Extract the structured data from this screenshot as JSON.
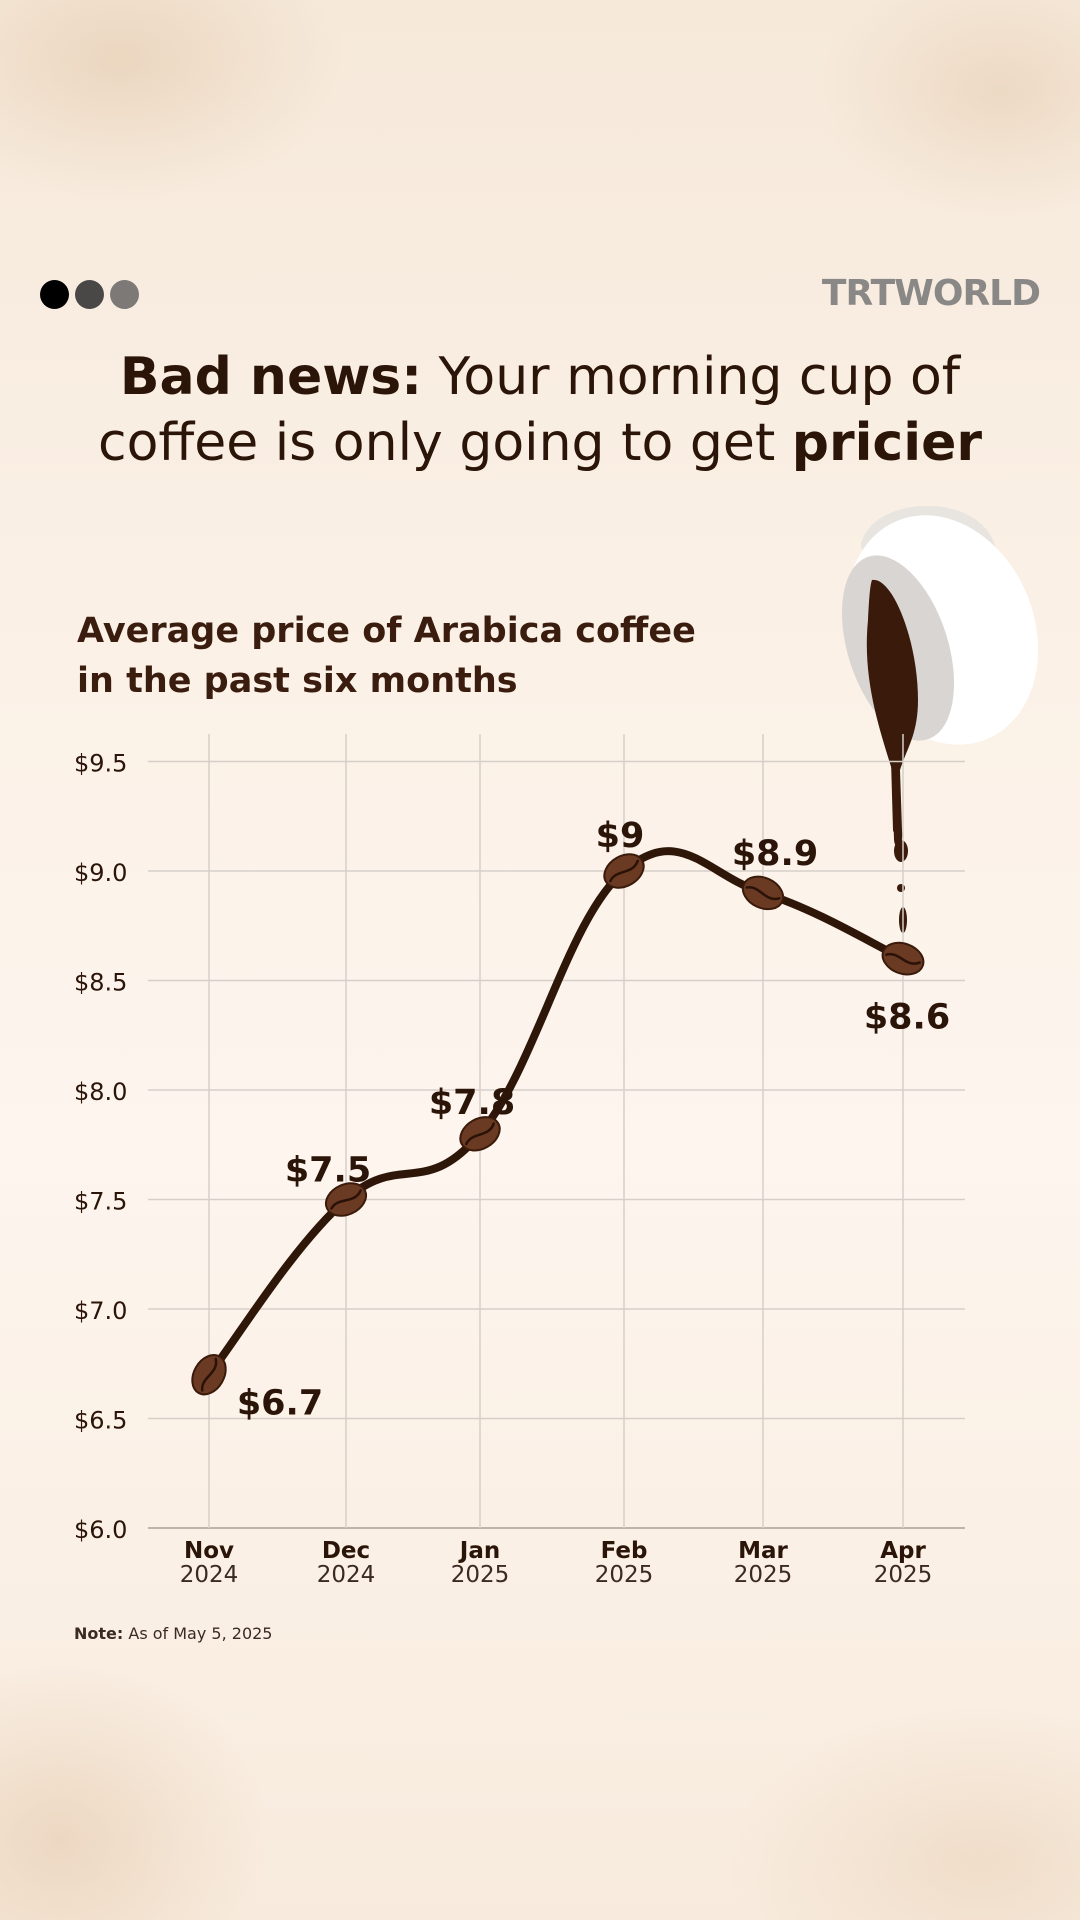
{
  "header": {
    "brand": "TRTWORLD",
    "dot_colors": [
      "#000000",
      "#4a4846",
      "#7c7977"
    ]
  },
  "headline": {
    "part1_bold": "Bad news:",
    "part2": " Your morning cup of coffee is only going to get ",
    "part3_bold": "pricier"
  },
  "chart_data": {
    "type": "line",
    "title": "Average price of Arabica coffee in the past six months",
    "categories": [
      "Nov 2024",
      "Dec 2024",
      "Jan 2025",
      "Feb 2025",
      "Mar 2025",
      "Apr 2025"
    ],
    "x_month": [
      "Nov",
      "Dec",
      "Jan",
      "Feb",
      "Mar",
      "Apr"
    ],
    "x_year": [
      "2024",
      "2024",
      "2025",
      "2025",
      "2025",
      "2025"
    ],
    "values": [
      6.7,
      7.5,
      7.8,
      9.0,
      8.9,
      8.6
    ],
    "data_labels": [
      "$6.7",
      "$7.5",
      "$7.8",
      "$9",
      "$8.9",
      "$8.6"
    ],
    "y_ticks": [
      6.0,
      6.5,
      7.0,
      7.5,
      8.0,
      8.5,
      9.0,
      9.5
    ],
    "y_tick_labels": [
      "$6.0",
      "$6.5",
      "$7.0",
      "$7.5",
      "$8.0",
      "$8.5",
      "$9.0",
      "$9.5"
    ],
    "ylim": [
      6.0,
      9.6
    ],
    "grid": true,
    "line_color": "#2e1608",
    "marker": "coffee-bean",
    "marker_color": "#6b3a22"
  },
  "note": {
    "label": "Note:",
    "text": " As of May 5, 2025"
  }
}
